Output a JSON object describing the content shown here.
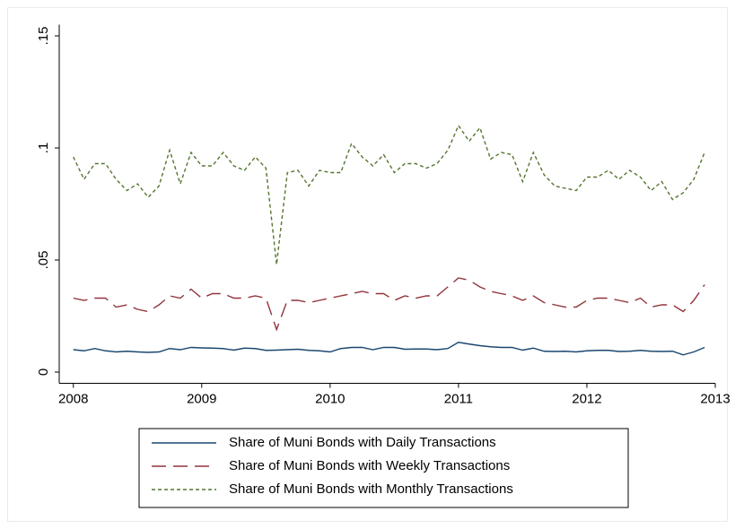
{
  "chart_data": {
    "type": "line",
    "x": [
      2008,
      2008.083,
      2008.167,
      2008.25,
      2008.333,
      2008.417,
      2008.5,
      2008.583,
      2008.667,
      2008.75,
      2008.833,
      2008.917,
      2009,
      2009.083,
      2009.167,
      2009.25,
      2009.333,
      2009.417,
      2009.5,
      2009.583,
      2009.667,
      2009.75,
      2009.833,
      2009.917,
      2010,
      2010.083,
      2010.167,
      2010.25,
      2010.333,
      2010.417,
      2010.5,
      2010.583,
      2010.667,
      2010.75,
      2010.833,
      2010.917,
      2011,
      2011.083,
      2011.167,
      2011.25,
      2011.333,
      2011.417,
      2011.5,
      2011.583,
      2011.667,
      2011.75,
      2011.833,
      2011.917,
      2012,
      2012.083,
      2012.167,
      2012.25,
      2012.333,
      2012.417,
      2012.5,
      2012.583,
      2012.667,
      2012.75,
      2012.833,
      2012.917
    ],
    "series": [
      {
        "name": "Share of Muni Bonds with Daily Transactions",
        "color": "#1a476f",
        "dash": "solid",
        "values": [
          0.01,
          0.0095,
          0.0105,
          0.0095,
          0.009,
          0.0093,
          0.009,
          0.0088,
          0.009,
          0.0105,
          0.01,
          0.011,
          0.0108,
          0.0107,
          0.0105,
          0.0098,
          0.0107,
          0.0105,
          0.0097,
          0.0098,
          0.01,
          0.0102,
          0.0097,
          0.0095,
          0.009,
          0.0105,
          0.011,
          0.011,
          0.01,
          0.011,
          0.011,
          0.0102,
          0.0103,
          0.0103,
          0.01,
          0.0105,
          0.0133,
          0.0125,
          0.0118,
          0.0113,
          0.011,
          0.011,
          0.0098,
          0.0107,
          0.0093,
          0.0092,
          0.0093,
          0.009,
          0.0095,
          0.0097,
          0.0097,
          0.0092,
          0.0093,
          0.0097,
          0.0093,
          0.0092,
          0.0093,
          0.0077,
          0.009,
          0.011
        ]
      },
      {
        "name": "Share of Muni Bonds with Weekly Transactions",
        "color": "#90353b",
        "dash": "long",
        "values": [
          0.033,
          0.032,
          0.033,
          0.033,
          0.029,
          0.03,
          0.028,
          0.027,
          0.03,
          0.034,
          0.033,
          0.037,
          0.033,
          0.035,
          0.035,
          0.033,
          0.033,
          0.034,
          0.033,
          0.019,
          0.032,
          0.032,
          0.031,
          0.032,
          0.033,
          0.034,
          0.035,
          0.036,
          0.035,
          0.035,
          0.032,
          0.034,
          0.033,
          0.034,
          0.034,
          0.038,
          0.042,
          0.041,
          0.038,
          0.036,
          0.035,
          0.034,
          0.032,
          0.034,
          0.031,
          0.03,
          0.029,
          0.029,
          0.032,
          0.033,
          0.033,
          0.032,
          0.031,
          0.033,
          0.029,
          0.03,
          0.03,
          0.027,
          0.032,
          0.039
        ]
      },
      {
        "name": "Share of Muni Bonds with Monthly Transactions",
        "color": "#55752f",
        "dash": "short",
        "values": [
          0.096,
          0.086,
          0.093,
          0.093,
          0.086,
          0.081,
          0.084,
          0.078,
          0.083,
          0.099,
          0.084,
          0.098,
          0.092,
          0.092,
          0.098,
          0.092,
          0.09,
          0.096,
          0.091,
          0.048,
          0.089,
          0.09,
          0.083,
          0.09,
          0.089,
          0.089,
          0.102,
          0.096,
          0.092,
          0.097,
          0.089,
          0.093,
          0.093,
          0.091,
          0.093,
          0.099,
          0.11,
          0.103,
          0.109,
          0.095,
          0.098,
          0.097,
          0.085,
          0.098,
          0.088,
          0.083,
          0.082,
          0.081,
          0.087,
          0.087,
          0.09,
          0.086,
          0.09,
          0.087,
          0.081,
          0.085,
          0.077,
          0.08,
          0.086,
          0.098
        ]
      }
    ],
    "xlim": [
      2007.89,
      2013
    ],
    "xticks": [
      2008,
      2009,
      2010,
      2011,
      2012,
      2013
    ],
    "ylim": [
      -0.005,
      0.155
    ],
    "yticks": [
      0,
      {
        "value": 0.05,
        "label": ".05"
      },
      {
        "value": 0.1,
        "label": ".1"
      },
      {
        "value": 0.15,
        "label": ".15"
      }
    ],
    "grid": false,
    "legend": "bottom"
  }
}
